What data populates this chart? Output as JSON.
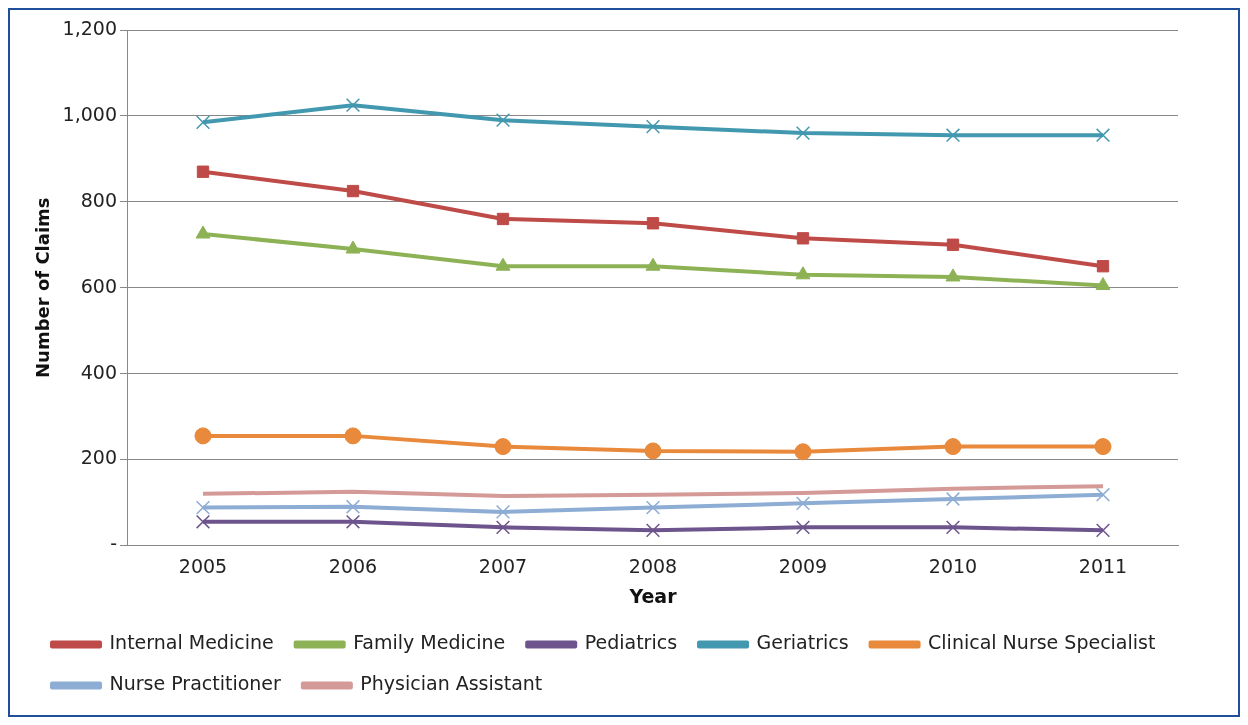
{
  "chart_data": {
    "type": "line",
    "xlabel": "Year",
    "ylabel": "Number of Claims",
    "categories": [
      "2005",
      "2006",
      "2007",
      "2008",
      "2009",
      "2010",
      "2011"
    ],
    "ylim": [
      0,
      1200
    ],
    "yticks": [
      {
        "value": 0,
        "label": "-"
      },
      200,
      400,
      600,
      800,
      {
        "value": 1000,
        "label": "1,000"
      },
      {
        "value": 1200,
        "label": "1,200"
      }
    ],
    "grid": "y",
    "legend": "bottom",
    "series": [
      {
        "name": "Internal Medicine",
        "color": "#be4b48",
        "marker": "square",
        "values": [
          870,
          825,
          760,
          750,
          715,
          700,
          650
        ]
      },
      {
        "name": "Family Medicine",
        "color": "#8db255",
        "marker": "triangle",
        "values": [
          725,
          690,
          650,
          650,
          630,
          625,
          605
        ]
      },
      {
        "name": "Pediatrics",
        "color": "#6e548d",
        "marker": "cross",
        "values": [
          55,
          55,
          42,
          35,
          42,
          42,
          35
        ]
      },
      {
        "name": "Geriatrics",
        "color": "#4298af",
        "marker": "cross",
        "values": [
          985,
          1025,
          990,
          975,
          960,
          955,
          955
        ]
      },
      {
        "name": "Clinical Nurse Specialist",
        "color": "#e8893b",
        "marker": "circle",
        "values": [
          255,
          255,
          230,
          220,
          218,
          230,
          230
        ]
      },
      {
        "name": "Nurse Practitioner",
        "color": "#8eadd4",
        "marker": "cross",
        "values": [
          88,
          90,
          78,
          88,
          98,
          108,
          118
        ]
      },
      {
        "name": "Physician Assistant",
        "color": "#d49a98",
        "marker": "none",
        "values": [
          120,
          125,
          115,
          118,
          122,
          132,
          138
        ]
      }
    ]
  }
}
